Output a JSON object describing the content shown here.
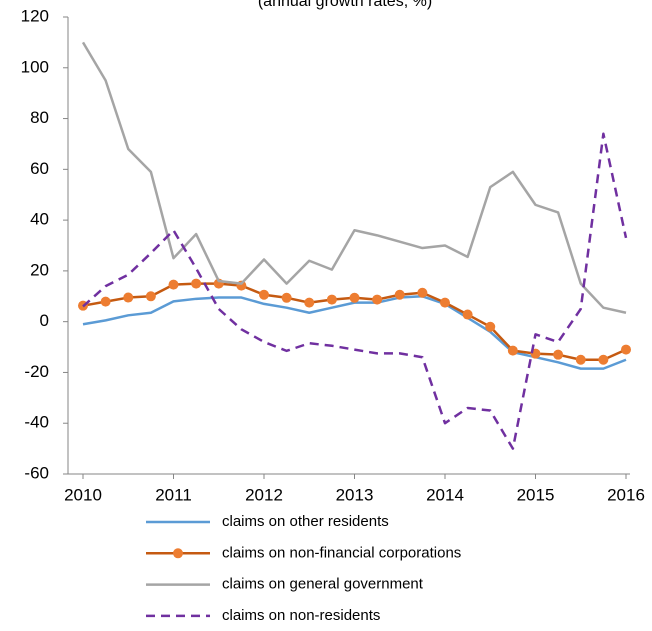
{
  "chart_data": {
    "type": "line",
    "title": "(annual growth rates, %)",
    "x": [
      2010,
      2010.25,
      2010.5,
      2010.75,
      2011,
      2011.25,
      2011.5,
      2011.75,
      2012,
      2012.25,
      2012.5,
      2012.75,
      2013,
      2013.25,
      2013.5,
      2013.75,
      2014,
      2014.25,
      2014.5,
      2014.75,
      2015,
      2015.25,
      2015.5,
      2015.75,
      2016
    ],
    "series": [
      {
        "name": "claims on other residents",
        "color": "#5b9bd5",
        "values": [
          -1,
          0.5,
          2.5,
          3.5,
          8,
          9,
          9.5,
          9.5,
          7,
          5.5,
          3.5,
          5.5,
          7.5,
          7.5,
          9.5,
          10,
          7,
          1.5,
          -4,
          -12,
          -14,
          -16,
          -18.5,
          -18.5,
          -15
        ]
      },
      {
        "name": "claims on non-financial corporations",
        "color": "#c55a11",
        "marker_color": "#ed7d31",
        "markers": true,
        "values": [
          6.3,
          7.9,
          9.5,
          10,
          14.6,
          15,
          15,
          14.2,
          10.6,
          9.4,
          7.5,
          8.7,
          9.4,
          8.7,
          10.6,
          11.4,
          7.5,
          2.8,
          -2,
          -11.4,
          -12.6,
          -13,
          -15,
          -15,
          -11
        ]
      },
      {
        "name": "claims on general government",
        "color": "#a5a5a5",
        "values": [
          110,
          95,
          68,
          59,
          25,
          34.5,
          16,
          15,
          24.5,
          15,
          24,
          20.5,
          36,
          34,
          31.5,
          29,
          30,
          25.5,
          53,
          59,
          46,
          43,
          15,
          5.5,
          3.5
        ]
      },
      {
        "name": "claims on non-residents",
        "color": "#7030a0",
        "dash": true,
        "values": [
          6,
          14,
          18.5,
          27,
          36,
          21,
          5,
          -3,
          -8,
          -11.5,
          -8.5,
          -9.5,
          -11,
          -12.5,
          -12.5,
          -14,
          -40,
          -34,
          -35,
          -50,
          -5,
          -8,
          5,
          74,
          33
        ]
      }
    ],
    "xlim": [
      2010,
      2016
    ],
    "xticks": [
      2010,
      2011,
      2012,
      2013,
      2014,
      2015,
      2016
    ],
    "ylim": [
      -60,
      120
    ],
    "yticks": [
      -60,
      -40,
      -20,
      0,
      20,
      40,
      60,
      80,
      100,
      120
    ]
  }
}
